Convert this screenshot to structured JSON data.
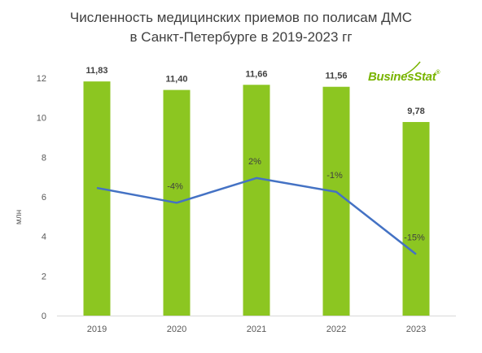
{
  "chart_data": {
    "type": "bar",
    "title_line1": "Численность медицинских приемов по полисам ДМС",
    "title_line2": "в Санкт-Петербурге в 2019-2023 гг",
    "ylabel": "млн",
    "categories": [
      "2019",
      "2020",
      "2021",
      "2022",
      "2023"
    ],
    "values": [
      11.83,
      11.4,
      11.66,
      11.56,
      9.78
    ],
    "value_labels": [
      "11,83",
      "11,40",
      "11,66",
      "11,56",
      "9,78"
    ],
    "ylim": [
      0,
      12
    ],
    "yticks": [
      "0",
      "2",
      "4",
      "6",
      "8",
      "10",
      "12"
    ],
    "growth_line": {
      "values": [
        6.45,
        5.7,
        6.95,
        6.25,
        3.1
      ],
      "labels": [
        "",
        "-4%",
        "2%",
        "-1%",
        "-15%"
      ]
    },
    "grid": false,
    "legend": "none"
  },
  "brand": {
    "name": "BusinesStat",
    "reg": "®"
  },
  "colors": {
    "bar": "#8cc621",
    "line": "#4472c4",
    "brand": "#79b400"
  }
}
